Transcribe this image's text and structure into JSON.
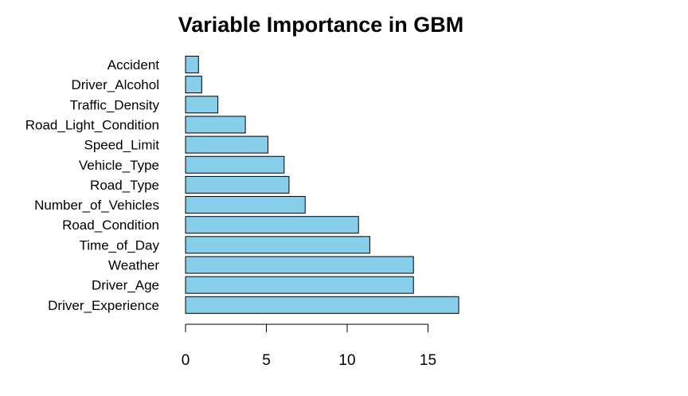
{
  "chart_data": {
    "type": "bar",
    "orientation": "horizontal",
    "title": "Variable Importance in GBM",
    "xlabel": "",
    "ylabel": "",
    "categories": [
      "Accident",
      "Driver_Alcohol",
      "Traffic_Density",
      "Road_Light_Condition",
      "Speed_Limit",
      "Vehicle_Type",
      "Road_Type",
      "Number_of_Vehicles",
      "Road_Condition",
      "Time_of_Day",
      "Weather",
      "Driver_Age",
      "Driver_Experience"
    ],
    "values": [
      0.8,
      1.0,
      2.0,
      3.7,
      5.1,
      6.1,
      6.4,
      7.4,
      10.7,
      11.4,
      14.1,
      14.1,
      16.9
    ],
    "xticks": [
      0,
      5,
      10,
      15
    ],
    "xtick_labels": [
      "0",
      "5",
      "10",
      "15"
    ],
    "xlim": [
      0,
      17
    ],
    "grid": false,
    "legend": "none",
    "bar_color": "#87CEEB",
    "bar_edge_color": "#000000"
  }
}
